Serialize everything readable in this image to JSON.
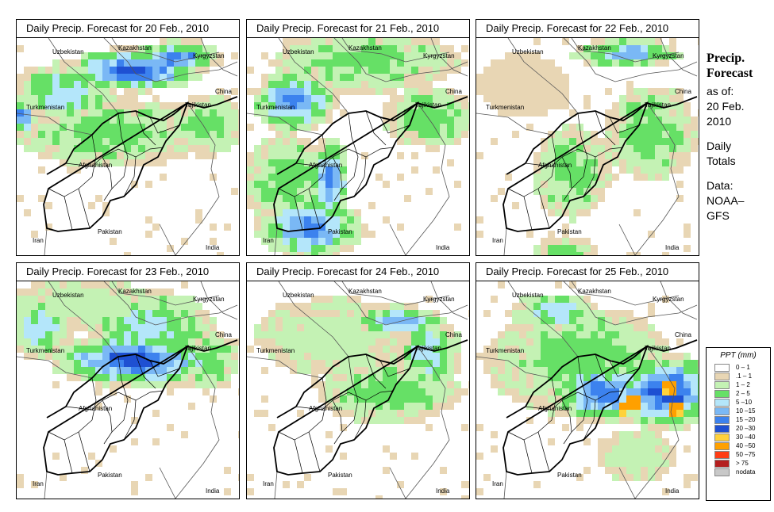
{
  "panels": [
    {
      "title": "Daily Precip. Forecast for",
      "date": "20 Feb., 2010"
    },
    {
      "title": "Daily Precip. Forecast for",
      "date": "21 Feb., 2010"
    },
    {
      "title": "Daily Precip. Forecast for",
      "date": "22 Feb., 2010"
    },
    {
      "title": "Daily Precip. Forecast for",
      "date": "23 Feb., 2010"
    },
    {
      "title": "Daily Precip. Forecast for",
      "date": "24 Feb., 2010"
    },
    {
      "title": "Daily Precip. Forecast for",
      "date": "25 Feb., 2010"
    }
  ],
  "places": {
    "uzbekistan": "Uzbekistan",
    "kazakhstan": "Kazakhstan",
    "kyrgyzstan": "Kyrgyzstan",
    "china": "China",
    "turkmenistan": "Turkmenistan",
    "tajikistan": "Tajikistan",
    "afghanistan": "Afghanistan",
    "iran": "Iran",
    "pakistan": "Pakistan",
    "india": "India"
  },
  "sidebar": {
    "heading1": "Precip.",
    "heading2": "Forecast",
    "asof_label": "as of:",
    "asof_date1": "20 Feb.",
    "asof_date2": "2010",
    "totals1": "Daily",
    "totals2": "Totals",
    "data_label": "Data:",
    "data_source1": "NOAA–",
    "data_source2": "GFS"
  },
  "legend": {
    "title": "PPT (mm)",
    "classes": [
      {
        "label": "0 – 1",
        "color": "#ffffff"
      },
      {
        "label": ".1 – 1",
        "color": "#e8d6b4"
      },
      {
        "label": "1 – 2",
        "color": "#c4f2b4"
      },
      {
        "label": "2 – 5",
        "color": "#66e066"
      },
      {
        "label": "5 –10",
        "color": "#b4e6fa"
      },
      {
        "label": "10 –15",
        "color": "#7ab8f5"
      },
      {
        "label": "15 –20",
        "color": "#3c82ee"
      },
      {
        "label": "20 –30",
        "color": "#1e50d2"
      },
      {
        "label": "30 –40",
        "color": "#ffd23c"
      },
      {
        "label": "40 –50",
        "color": "#ffa000"
      },
      {
        "label": "50 –75",
        "color": "#ff3c14"
      },
      {
        "label": "> 75",
        "color": "#b41e1e"
      },
      {
        "label": "nodata",
        "color": "#c8c8c8"
      }
    ]
  }
}
